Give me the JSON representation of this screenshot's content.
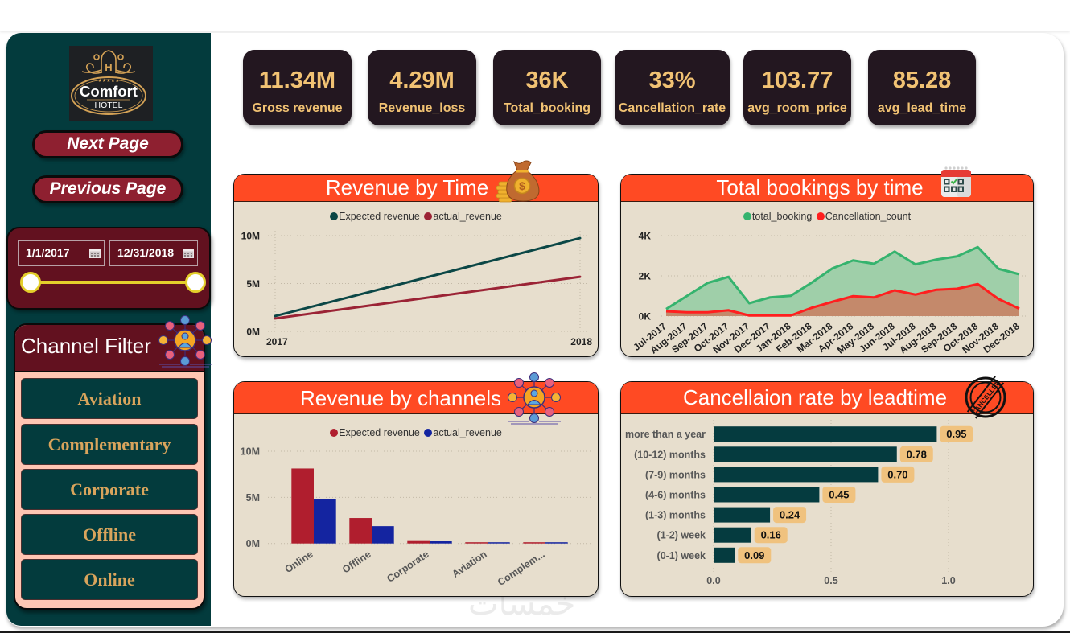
{
  "sidebar": {
    "logo": {
      "emblem": "H",
      "stars": "★★★★★",
      "brand": "Comfort",
      "subtitle": "HOTEL"
    },
    "nav": {
      "next_label": "Next Page",
      "previous_label": "Previous Page"
    },
    "date_range": {
      "start": "1/1/2017",
      "end": "12/31/2018",
      "slider_start_fraction": 0,
      "slider_end_fraction": 1
    },
    "channel_filter": {
      "title": "Channel Filter",
      "items": [
        {
          "label": "Aviation"
        },
        {
          "label": "Complementary"
        },
        {
          "label": "Corporate"
        },
        {
          "label": "Offline"
        },
        {
          "label": "Online"
        }
      ]
    }
  },
  "kpis": [
    {
      "value": "11.34M",
      "label": "Gross revenue"
    },
    {
      "value": "4.29M",
      "label": "Revenue_loss"
    },
    {
      "value": "36K",
      "label": "Total_booking"
    },
    {
      "value": "33%",
      "label": "Cancellation_rate"
    },
    {
      "value": "103.77",
      "label": "avg_room_price"
    },
    {
      "value": "85.28",
      "label": "avg_lead_time"
    }
  ],
  "icons": {
    "revenue_time": "money-bag-icon",
    "bookings_time": "calendar-check-icon",
    "channels": "social-network-icon",
    "cancellation": "cancelled-stamp-icon",
    "money_bag_symbol": "$",
    "stamp_text": "CANCELLED"
  },
  "watermark": "خمسات",
  "colors": {
    "sidebar": "#033b3d",
    "accent": "#ff4a23",
    "panel_bg": "#e7decd",
    "kpi_bg": "#231720",
    "kpi_text": "#f1c273",
    "maroon": "#62111f",
    "button": "#8e2030",
    "filter_bg": "#ffc6b3",
    "filter_text": "#d8a45c",
    "slider": "#e4cf2b"
  },
  "chart_data": [
    {
      "type": "line",
      "title": "Revenue by Time",
      "categories": [
        "2017",
        "2018"
      ],
      "series": [
        {
          "name": "Expected revenue",
          "values": [
            1600000,
            9740000
          ],
          "color": "#0b4746"
        },
        {
          "name": "actual_revenue",
          "values": [
            1350000,
            5700000
          ],
          "color": "#9b2335"
        }
      ],
      "yticks": [
        {
          "value": 0,
          "label": "0M"
        },
        {
          "value": 5000000,
          "label": "5M"
        },
        {
          "value": 10000000,
          "label": "10M"
        }
      ],
      "ylim": [
        0,
        10000000
      ],
      "xlabel": "",
      "ylabel": "",
      "grid": true,
      "legend": "top-center"
    },
    {
      "type": "area",
      "title": "Total bookings by time",
      "categories": [
        "Jul-2017",
        "Aug-2017",
        "Sep-2017",
        "Oct-2017",
        "Nov-2017",
        "Dec-2017",
        "Jan-2018",
        "Feb-2018",
        "Mar-2018",
        "Apr-2018",
        "May-2018",
        "Jun-2018",
        "Jul-2018",
        "Aug-2018",
        "Sep-2018",
        "Oct-2018",
        "Nov-2018",
        "Dec-2018"
      ],
      "series": [
        {
          "name": "total_booking",
          "values": [
            350,
            1000,
            1650,
            1950,
            640,
            930,
            1010,
            1660,
            2370,
            2770,
            2600,
            3210,
            2570,
            2810,
            2970,
            3430,
            2350,
            2080
          ],
          "color": "#35b36e",
          "fill": "#9fcfa9"
        },
        {
          "name": "Cancellation_count",
          "values": [
            240,
            190,
            190,
            290,
            30,
            30,
            30,
            410,
            710,
            990,
            930,
            1280,
            1070,
            1310,
            1360,
            1590,
            850,
            370
          ],
          "color": "#ff1f1f",
          "fill": "#c4896b"
        }
      ],
      "yticks": [
        {
          "value": 0,
          "label": "0K"
        },
        {
          "value": 2000,
          "label": "2K"
        },
        {
          "value": 4000,
          "label": "4K"
        }
      ],
      "ylim": [
        0,
        4000
      ],
      "xlabel": "",
      "ylabel": "",
      "grid": true,
      "legend": "top-center"
    },
    {
      "type": "bar",
      "title": "Revenue by channels",
      "categories": [
        "Online",
        "Offline",
        "Corporate",
        "Aviation",
        "Complem..."
      ],
      "series": [
        {
          "name": "Expected revenue",
          "values": [
            8130000,
            2760000,
            350000,
            70000,
            50000
          ],
          "color": "#b01e2e"
        },
        {
          "name": "actual_revenue",
          "values": [
            4850000,
            1880000,
            260000,
            50000,
            40000
          ],
          "color": "#1424a0"
        }
      ],
      "yticks": [
        {
          "value": 0,
          "label": "0M"
        },
        {
          "value": 5000000,
          "label": "5M"
        },
        {
          "value": 10000000,
          "label": "10M"
        }
      ],
      "ylim": [
        0,
        10000000
      ],
      "xlabel": "",
      "ylabel": "",
      "grid": true,
      "legend": "top-center"
    },
    {
      "type": "bar-horizontal",
      "title": "Cancellaion rate by leadtime",
      "categories": [
        "more than a year",
        "(10-12) months",
        "(7-9) months",
        "(4-6) months",
        "(1-3) months",
        "(1-2) week",
        "(0-1) week"
      ],
      "values": [
        0.95,
        0.78,
        0.7,
        0.45,
        0.24,
        0.16,
        0.09
      ],
      "data_labels": [
        "0.95",
        "0.78",
        "0.70",
        "0.45",
        "0.24",
        "0.16",
        "0.09"
      ],
      "xticks": [
        {
          "value": 0,
          "label": "0.0"
        },
        {
          "value": 0.5,
          "label": "0.5"
        },
        {
          "value": 1.0,
          "label": "1.0"
        }
      ],
      "xlim": [
        0,
        1.0
      ],
      "color": "#053b3f",
      "label_bg": "#f0c27e",
      "xlabel": "",
      "ylabel": "",
      "grid": true,
      "legend": "none"
    }
  ]
}
